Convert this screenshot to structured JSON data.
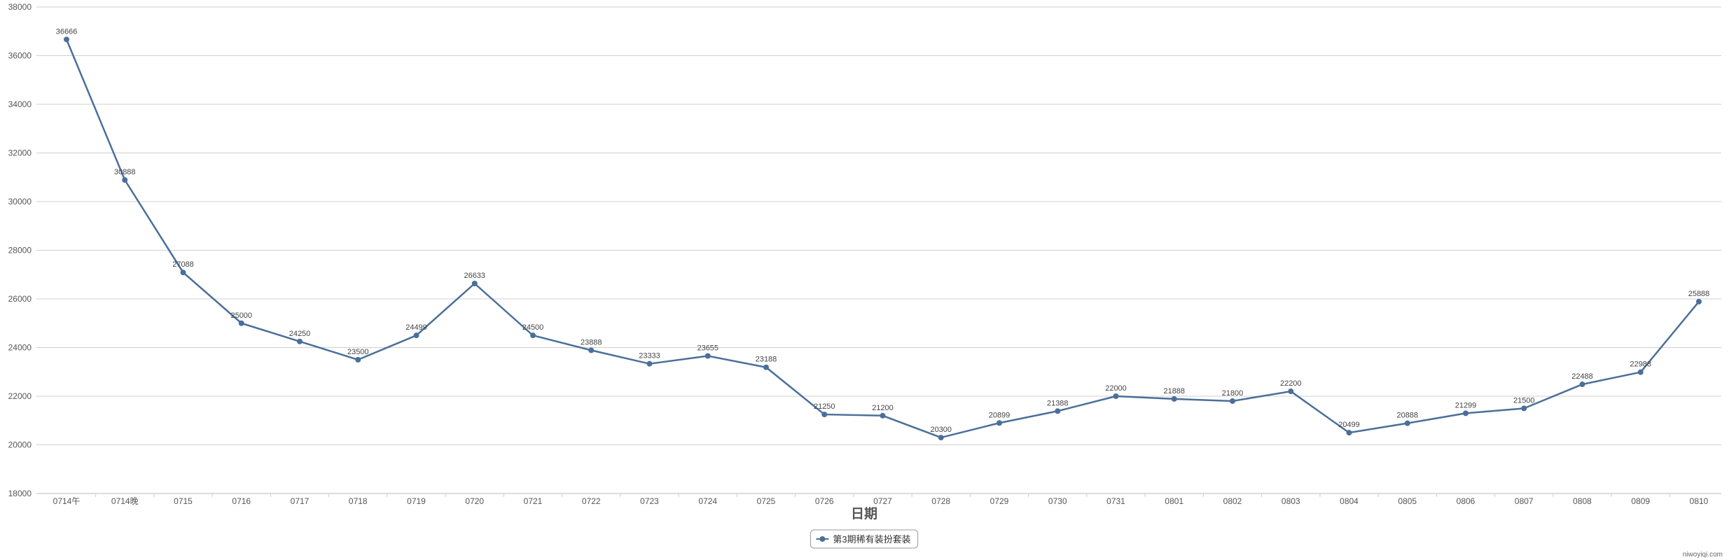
{
  "chart_data": {
    "type": "line",
    "title": "",
    "xlabel": "日期",
    "ylabel": "",
    "ylim": [
      18000,
      38000
    ],
    "yticks": [
      18000,
      20000,
      22000,
      24000,
      26000,
      28000,
      30000,
      32000,
      34000,
      36000,
      38000
    ],
    "grid": true,
    "legend_position": "bottom-center",
    "categories": [
      "0714午",
      "0714晚",
      "0715",
      "0716",
      "0717",
      "0718",
      "0719",
      "0720",
      "0721",
      "0722",
      "0723",
      "0724",
      "0725",
      "0726",
      "0727",
      "0728",
      "0729",
      "0730",
      "0731",
      "0801",
      "0802",
      "0803",
      "0804",
      "0805",
      "0806",
      "0807",
      "0808",
      "0809",
      "0810"
    ],
    "series": [
      {
        "name": "第3期稀有装扮套装",
        "color": "#4a6f99",
        "values": [
          36666,
          30888,
          27088,
          25000,
          24250,
          23500,
          24499,
          26633,
          24500,
          23888,
          23333,
          23655,
          23188,
          21250,
          21200,
          20300,
          20899,
          21388,
          22000,
          21888,
          21800,
          22200,
          20499,
          20888,
          21299,
          21500,
          22488,
          22988,
          25888
        ]
      }
    ]
  },
  "watermark": "niwoyiqi.com"
}
